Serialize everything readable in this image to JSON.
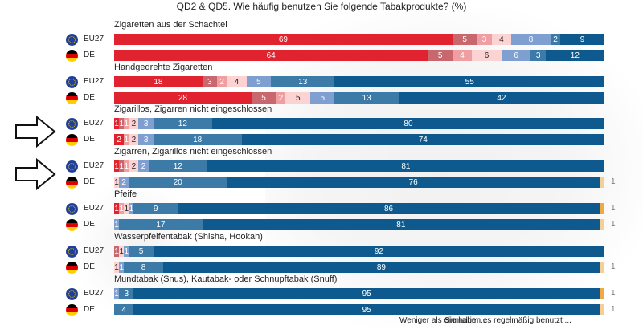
{
  "title": "QD2 & QD5. Wie häufig benutzen Sie folgende Tabakprodukte? (%)",
  "colors": {
    "daily": "#e0232e",
    "weekly": "#c8676d",
    "monthly": "#ef9ea1",
    "less_than_monthly": "#fbd3d3",
    "tried_once_twice": "#7f9fd0",
    "used_in_past": "#3c7aa8",
    "never": "#0e5a8e",
    "dont_know_eu": "#f2a941",
    "dont_know_de": "#f6cf97"
  },
  "row_labels": {
    "eu": "EU27",
    "de": "DE"
  },
  "legend": {
    "items": [
      "Weniger als einmal im ...",
      "Sie haben es regelmäßig benutzt ..."
    ]
  },
  "chart_data": {
    "type": "bar",
    "orientation": "horizontal-stacked-100",
    "title": "QD2 & QD5. Wie häufig benutzen Sie folgende Tabakprodukte? (%)",
    "series_order": [
      "daily",
      "weekly",
      "monthly",
      "less_than_monthly",
      "tried_once_twice",
      "used_in_past",
      "never",
      "dont_know"
    ],
    "groups": [
      {
        "label": "Zigaretten aus der Schachtel",
        "highlighted": false,
        "rows": [
          {
            "name": "EU27",
            "values": [
              69,
              5,
              3,
              4,
              8,
              2,
              9,
              0
            ]
          },
          {
            "name": "DE",
            "values": [
              64,
              5,
              4,
              6,
              6,
              3,
              12,
              0
            ]
          }
        ]
      },
      {
        "label": "Handgedrehte Zigaretten",
        "highlighted": false,
        "rows": [
          {
            "name": "EU27",
            "values": [
              18,
              3,
              2,
              4,
              5,
              13,
              55,
              0
            ]
          },
          {
            "name": "DE",
            "values": [
              28,
              5,
              2,
              5,
              5,
              13,
              42,
              0
            ]
          }
        ]
      },
      {
        "label": "Zigarillos, Zigarren nicht eingeschlossen",
        "highlighted": true,
        "rows": [
          {
            "name": "EU27",
            "values": [
              1,
              1,
              1,
              2,
              3,
              12,
              80,
              0
            ]
          },
          {
            "name": "DE",
            "values": [
              2,
              0,
              1,
              2,
              3,
              18,
              74,
              0
            ]
          }
        ]
      },
      {
        "label": "Zigarren, Zigarillos nicht eingeschlossen",
        "highlighted": true,
        "rows": [
          {
            "name": "EU27",
            "values": [
              1,
              1,
              1,
              2,
              2,
              12,
              81,
              0
            ]
          },
          {
            "name": "DE",
            "values": [
              0,
              0,
              0,
              1,
              2,
              20,
              76,
              1
            ]
          }
        ]
      },
      {
        "label": "Pfeife",
        "highlighted": false,
        "rows": [
          {
            "name": "EU27",
            "values": [
              1,
              0,
              1,
              1,
              1,
              9,
              86,
              1
            ]
          },
          {
            "name": "DE",
            "values": [
              0,
              0,
              0,
              0,
              1,
              17,
              81,
              1
            ]
          }
        ]
      },
      {
        "label": "Wasserpfeifentabak (Shisha, Hookah)",
        "highlighted": false,
        "rows": [
          {
            "name": "EU27",
            "values": [
              0,
              1,
              0,
              1,
              1,
              5,
              92,
              0
            ]
          },
          {
            "name": "DE",
            "values": [
              0,
              0,
              0,
              1,
              1,
              8,
              89,
              1
            ]
          }
        ]
      },
      {
        "label": "Mundtabak (Snus), Kautabak- oder Schnupftabak (Snuff)",
        "highlighted": false,
        "rows": [
          {
            "name": "EU27",
            "values": [
              0,
              0,
              0,
              0,
              1,
              3,
              95,
              1
            ]
          },
          {
            "name": "DE",
            "values": [
              0,
              0,
              0,
              0,
              0,
              4,
              95,
              1
            ]
          }
        ]
      }
    ],
    "xlim": [
      0,
      100
    ],
    "unit": "%"
  }
}
